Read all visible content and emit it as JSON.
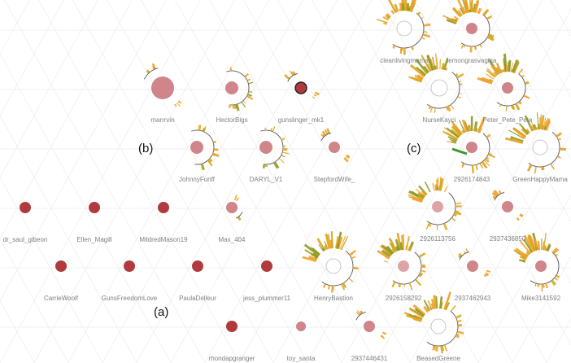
{
  "colors": {
    "dark_red": "#b03a3e",
    "pink": "#cf8589",
    "light_pink": "#dca4a7",
    "orange": "#f0a22a",
    "gold": "#d8a61e",
    "olive": "#8e9a24",
    "green": "#3a9a2a",
    "arc": "#555555",
    "grid": "#ececec",
    "label": "#808080"
  },
  "group_labels": [
    "(a)",
    "(b)",
    "(c)"
  ],
  "nodes": [
    {
      "label": "dr_saul_gibeon",
      "fill": "dark_red",
      "glyph": "none"
    },
    {
      "label": "Ellen_Magill",
      "fill": "dark_red",
      "glyph": "none"
    },
    {
      "label": "MildredMason19",
      "fill": "dark_red",
      "glyph": "none"
    },
    {
      "label": "Max_404",
      "fill": "pink",
      "glyph": "tiny"
    },
    {
      "label": "CarrieWoolf",
      "fill": "dark_red",
      "glyph": "none"
    },
    {
      "label": "GunsFreedomLove",
      "fill": "dark_red",
      "glyph": "none"
    },
    {
      "label": "PaulaDelleur",
      "fill": "dark_red",
      "glyph": "none"
    },
    {
      "label": "jess_plummer11",
      "fill": "dark_red",
      "glyph": "none"
    },
    {
      "label": "rhondapgranger",
      "fill": "dark_red",
      "glyph": "none"
    },
    {
      "label": "toy_santa",
      "fill": "pink",
      "glyph": "none"
    },
    {
      "label": "marrrvin",
      "fill": "pink",
      "glyph": "small"
    },
    {
      "label": "HectorBigs",
      "fill": "pink",
      "glyph": "arc"
    },
    {
      "label": "gunslinger_mk1",
      "fill": "dark_red",
      "glyph": "small"
    },
    {
      "label": "JohnnyFunff",
      "fill": "pink",
      "glyph": "arc"
    },
    {
      "label": "DARYL_V1",
      "fill": "pink",
      "glyph": "arc"
    },
    {
      "label": "StepfordWife_",
      "fill": "pink",
      "glyph": "small"
    },
    {
      "label": "cleanlivingmama",
      "fill": "white",
      "glyph": "burst"
    },
    {
      "label": "lemongrasvagina",
      "fill": "pink",
      "glyph": "burst"
    },
    {
      "label": "NurseKayci",
      "fill": "white",
      "glyph": "burst"
    },
    {
      "label": "Peter_Pete_Pete",
      "fill": "pink",
      "glyph": "burst"
    },
    {
      "label": "2926174843",
      "fill": "pink",
      "glyph": "burst"
    },
    {
      "label": "GreenHappyMama",
      "fill": "white",
      "glyph": "burst"
    },
    {
      "label": "2926113756",
      "fill": "light_pink",
      "glyph": "burst"
    },
    {
      "label": "2937436850",
      "fill": "pink",
      "glyph": "small"
    },
    {
      "label": "HenryBastion",
      "fill": "white",
      "glyph": "burst"
    },
    {
      "label": "2926158292",
      "fill": "light_pink",
      "glyph": "burst"
    },
    {
      "label": "2937462943",
      "fill": "pink",
      "glyph": "small"
    },
    {
      "label": "Mike3141592",
      "fill": "pink",
      "glyph": "burst"
    },
    {
      "label": "2937446431",
      "fill": "pink",
      "glyph": "small"
    },
    {
      "label": "BeasedGreene",
      "fill": "white",
      "glyph": "burst"
    }
  ]
}
